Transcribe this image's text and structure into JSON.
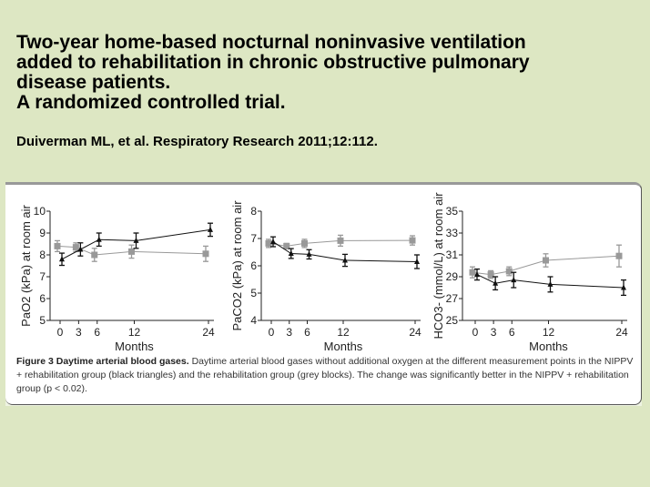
{
  "title": {
    "lines": [
      "Two-year home-based nocturnal noninvasive ventilation",
      "added to rehabilitation in chronic obstructive pulmonary",
      "disease patients.",
      "A randomized controlled trial."
    ]
  },
  "citation": "Duiverman ML, et al. Respiratory Research 2011;12:112.",
  "caption": {
    "label": "Figure 3 Daytime arterial blood gases.",
    "text": " Daytime arterial blood gases without additional oxygen at the different measurement points in the NIPPV + rehabilitation group (black triangles) and the rehabilitation group (grey blocks). The change was significantly better in the NIPPV + rehabilitation group (p < 0.02)."
  },
  "colors": {
    "background": "#dde7c3",
    "nippv": "#111111",
    "rehab": "#999999"
  },
  "chart_data": [
    {
      "type": "line",
      "ylabel": "PaO2 (kPa) at room air",
      "xlabel": "Months",
      "x": [
        0,
        3,
        6,
        12,
        24
      ],
      "xticks": [
        "0",
        "3",
        "6",
        "12",
        "24"
      ],
      "ylim": [
        5,
        10
      ],
      "yticks": [
        "5",
        "6",
        "7",
        "8",
        "9",
        "10"
      ],
      "series": [
        {
          "marker": "triangle",
          "color": "#111111",
          "values": [
            7.8,
            8.25,
            8.7,
            8.65,
            9.15
          ],
          "err": [
            0.28,
            0.3,
            0.3,
            0.35,
            0.3
          ]
        },
        {
          "marker": "square",
          "color": "#999999",
          "values": [
            8.4,
            8.35,
            8.0,
            8.15,
            8.05
          ],
          "err": [
            0.25,
            0.2,
            0.3,
            0.3,
            0.35
          ]
        }
      ]
    },
    {
      "type": "line",
      "ylabel": "PaCO2 (kPa) at room air",
      "xlabel": "Months",
      "x": [
        0,
        3,
        6,
        12,
        24
      ],
      "xticks": [
        "0",
        "3",
        "6",
        "12",
        "24"
      ],
      "ylim": [
        4,
        8
      ],
      "yticks": [
        "4",
        "5",
        "6",
        "7",
        "8"
      ],
      "series": [
        {
          "marker": "triangle",
          "color": "#111111",
          "values": [
            6.88,
            6.45,
            6.42,
            6.2,
            6.15
          ],
          "err": [
            0.18,
            0.18,
            0.17,
            0.22,
            0.25
          ]
        },
        {
          "marker": "square",
          "color": "#999999",
          "values": [
            6.82,
            6.72,
            6.82,
            6.92,
            6.93
          ],
          "err": [
            0.15,
            0.1,
            0.15,
            0.2,
            0.17
          ]
        }
      ]
    },
    {
      "type": "line",
      "ylabel": "HCO3- (mmol/L) at room air",
      "xlabel": "Months",
      "x": [
        0,
        3,
        6,
        12,
        24
      ],
      "xticks": [
        "0",
        "3",
        "6",
        "12",
        "24"
      ],
      "ylim": [
        25,
        35
      ],
      "yticks": [
        "25",
        "27",
        "29",
        "31",
        "33",
        "35"
      ],
      "series": [
        {
          "marker": "triangle",
          "color": "#111111",
          "values": [
            29.2,
            28.4,
            28.7,
            28.3,
            28.0
          ],
          "err": [
            0.5,
            0.6,
            0.7,
            0.7,
            0.7
          ]
        },
        {
          "marker": "square",
          "color": "#999999",
          "values": [
            29.4,
            29.2,
            29.5,
            30.5,
            30.9
          ],
          "err": [
            0.5,
            0.35,
            0.4,
            0.6,
            1.0
          ]
        }
      ]
    }
  ]
}
